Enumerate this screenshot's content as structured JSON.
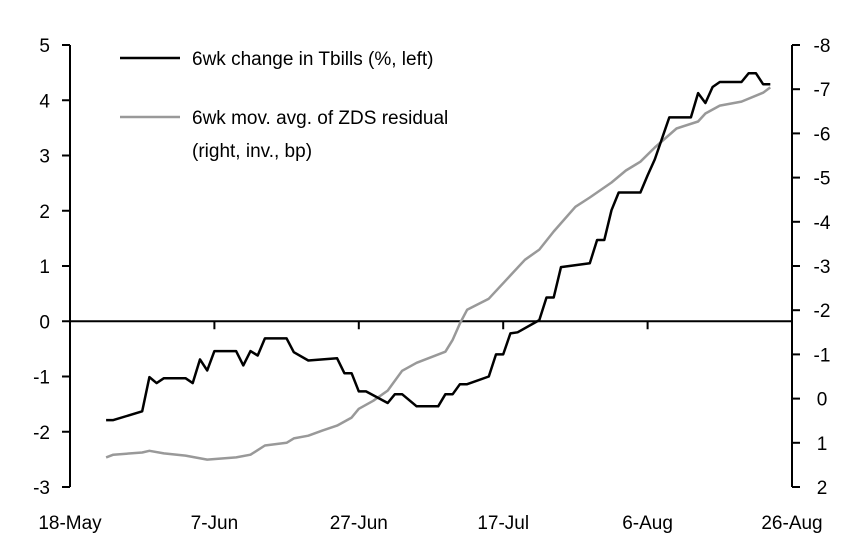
{
  "chart_data": {
    "type": "line",
    "title": "",
    "xlabel": "",
    "ylabel_left": "",
    "ylabel_right": "",
    "x_ticks": [
      "18-May",
      "7-Jun",
      "27-Jun",
      "17-Jul",
      "6-Aug",
      "26-Aug"
    ],
    "x_range": [
      "18-May",
      "26-Aug"
    ],
    "y_left": {
      "range": [
        -3,
        5
      ],
      "ticks": [
        "-3",
        "-2",
        "-1",
        "0",
        "1",
        "2",
        "3",
        "4",
        "5"
      ]
    },
    "y_right": {
      "range": [
        2,
        -8
      ],
      "inverted": true,
      "ticks": [
        "2",
        "1",
        "0",
        "-1",
        "-2",
        "-3",
        "-4",
        "-5",
        "-6",
        "-7",
        "-8"
      ]
    },
    "grid": false,
    "legend_placement": "top-left",
    "series": [
      {
        "name": "6wk change in Tbills (%, left)",
        "axis": "left",
        "color": "#000000",
        "points": [
          [
            "23-May",
            -1.79
          ],
          [
            "24-May",
            -1.79
          ],
          [
            "28-May",
            -1.63
          ],
          [
            "29-May",
            -1.01
          ],
          [
            "30-May",
            -1.12
          ],
          [
            "31-May",
            -1.03
          ],
          [
            "3-Jun",
            -1.03
          ],
          [
            "4-Jun",
            -1.12
          ],
          [
            "5-Jun",
            -0.69
          ],
          [
            "6-Jun",
            -0.89
          ],
          [
            "7-Jun",
            -0.54
          ],
          [
            "10-Jun",
            -0.54
          ],
          [
            "11-Jun",
            -0.8
          ],
          [
            "12-Jun",
            -0.54
          ],
          [
            "13-Jun",
            -0.62
          ],
          [
            "14-Jun",
            -0.31
          ],
          [
            "17-Jun",
            -0.31
          ],
          [
            "18-Jun",
            -0.56
          ],
          [
            "20-Jun",
            -0.71
          ],
          [
            "24-Jun",
            -0.67
          ],
          [
            "25-Jun",
            -0.94
          ],
          [
            "26-Jun",
            -0.94
          ],
          [
            "27-Jun",
            -1.27
          ],
          [
            "28-Jun",
            -1.27
          ],
          [
            "1-Jul",
            -1.48
          ],
          [
            "2-Jul",
            -1.32
          ],
          [
            "3-Jul",
            -1.32
          ],
          [
            "5-Jul",
            -1.54
          ],
          [
            "8-Jul",
            -1.54
          ],
          [
            "9-Jul",
            -1.32
          ],
          [
            "10-Jul",
            -1.32
          ],
          [
            "11-Jul",
            -1.14
          ],
          [
            "12-Jul",
            -1.14
          ],
          [
            "15-Jul",
            -1.0
          ],
          [
            "16-Jul",
            -0.6
          ],
          [
            "17-Jul",
            -0.6
          ],
          [
            "18-Jul",
            -0.22
          ],
          [
            "19-Jul",
            -0.2
          ],
          [
            "22-Jul",
            0.02
          ],
          [
            "23-Jul",
            0.43
          ],
          [
            "24-Jul",
            0.43
          ],
          [
            "25-Jul",
            0.98
          ],
          [
            "29-Jul",
            1.05
          ],
          [
            "30-Jul",
            1.47
          ],
          [
            "31-Jul",
            1.47
          ],
          [
            "1-Aug",
            2.01
          ],
          [
            "2-Aug",
            2.33
          ],
          [
            "5-Aug",
            2.33
          ],
          [
            "6-Aug",
            2.64
          ],
          [
            "7-Aug",
            2.93
          ],
          [
            "9-Aug",
            3.69
          ],
          [
            "12-Aug",
            3.69
          ],
          [
            "13-Aug",
            4.13
          ],
          [
            "14-Aug",
            3.95
          ],
          [
            "15-Aug",
            4.24
          ],
          [
            "16-Aug",
            4.33
          ],
          [
            "19-Aug",
            4.33
          ],
          [
            "20-Aug",
            4.49
          ],
          [
            "21-Aug",
            4.49
          ],
          [
            "22-Aug",
            4.29
          ],
          [
            "23-Aug",
            4.29
          ]
        ]
      },
      {
        "name": "6wk mov. avg. of ZDS residual (right, inv., bp)",
        "name_lines": [
          "6wk mov. avg. of ZDS residual",
          "(right, inv., bp)"
        ],
        "axis": "right",
        "color": "#999999",
        "points": [
          [
            "23-May",
            1.33
          ],
          [
            "24-May",
            1.27
          ],
          [
            "28-May",
            1.22
          ],
          [
            "29-May",
            1.18
          ],
          [
            "31-May",
            1.24
          ],
          [
            "3-Jun",
            1.29
          ],
          [
            "6-Jun",
            1.38
          ],
          [
            "10-Jun",
            1.33
          ],
          [
            "12-Jun",
            1.27
          ],
          [
            "14-Jun",
            1.06
          ],
          [
            "17-Jun",
            1.0
          ],
          [
            "18-Jun",
            0.9
          ],
          [
            "20-Jun",
            0.84
          ],
          [
            "22-Jun",
            0.72
          ],
          [
            "24-Jun",
            0.61
          ],
          [
            "26-Jun",
            0.43
          ],
          [
            "27-Jun",
            0.23
          ],
          [
            "29-Jun",
            0.05
          ],
          [
            "1-Jul",
            -0.18
          ],
          [
            "3-Jul",
            -0.63
          ],
          [
            "5-Jul",
            -0.81
          ],
          [
            "9-Jul",
            -1.06
          ],
          [
            "10-Jul",
            -1.33
          ],
          [
            "11-Jul",
            -1.7
          ],
          [
            "12-Jul",
            -2.01
          ],
          [
            "15-Jul",
            -2.26
          ],
          [
            "20-Jul",
            -3.14
          ],
          [
            "22-Jul",
            -3.37
          ],
          [
            "24-Jul",
            -3.78
          ],
          [
            "27-Jul",
            -4.34
          ],
          [
            "29-Jul",
            -4.55
          ],
          [
            "1-Aug",
            -4.89
          ],
          [
            "3-Aug",
            -5.16
          ],
          [
            "5-Aug",
            -5.36
          ],
          [
            "7-Aug",
            -5.68
          ],
          [
            "10-Aug",
            -6.11
          ],
          [
            "13-Aug",
            -6.27
          ],
          [
            "14-Aug",
            -6.45
          ],
          [
            "16-Aug",
            -6.63
          ],
          [
            "19-Aug",
            -6.72
          ],
          [
            "22-Aug",
            -6.92
          ],
          [
            "23-Aug",
            -7.04
          ]
        ]
      }
    ]
  }
}
